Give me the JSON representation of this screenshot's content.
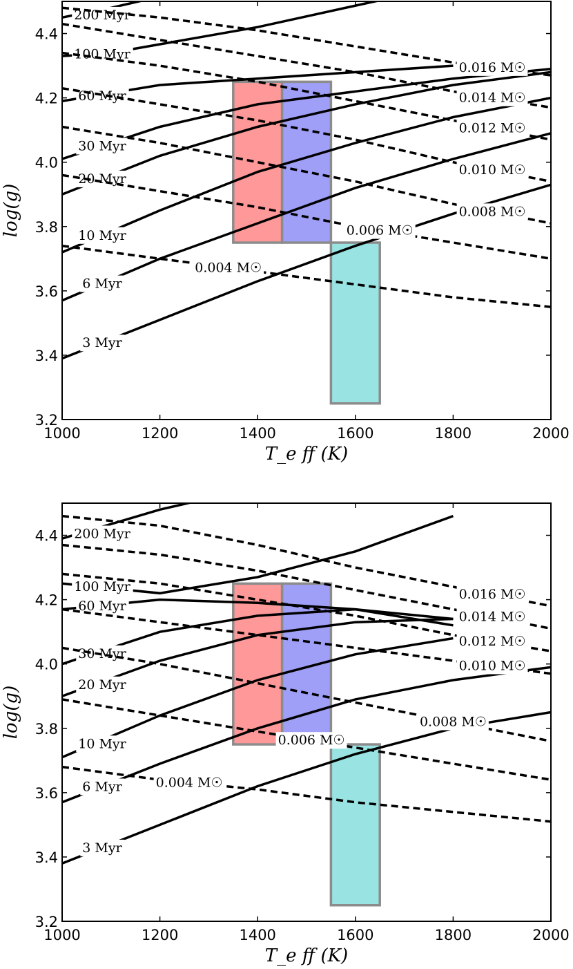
{
  "chart_data": [
    {
      "type": "line",
      "panel": "top",
      "xlabel": "T_e ff (K)",
      "ylabel": "log(g)",
      "xlim": [
        1000,
        2000
      ],
      "ylim": [
        3.2,
        4.5
      ],
      "xticks": [
        "1000",
        "1200",
        "1400",
        "1600",
        "1800",
        "2000"
      ],
      "yticks": [
        "3.2",
        "3.4",
        "3.6",
        "3.8",
        "4.0",
        "4.2",
        "4.4"
      ],
      "regions": [
        {
          "name": "red",
          "x": [
            1350,
            1450
          ],
          "y": [
            3.75,
            4.25
          ],
          "color": "#ff9999"
        },
        {
          "name": "blue",
          "x": [
            1450,
            1550
          ],
          "y": [
            3.75,
            4.25
          ],
          "color": "#9f9ff7"
        },
        {
          "name": "cyan",
          "x": [
            1550,
            1650
          ],
          "y": [
            3.25,
            3.75
          ],
          "color": "#99e3e3"
        }
      ],
      "isochrones": [
        {
          "label": "3 Myr",
          "points": [
            [
              1000,
              3.39
            ],
            [
              1200,
              3.51
            ],
            [
              1400,
              3.63
            ],
            [
              1600,
              3.74
            ],
            [
              1800,
              3.84
            ],
            [
              2000,
              3.93
            ]
          ]
        },
        {
          "label": "6 Myr",
          "points": [
            [
              1000,
              3.57
            ],
            [
              1200,
              3.7
            ],
            [
              1400,
              3.81
            ],
            [
              1600,
              3.92
            ],
            [
              1800,
              4.01
            ],
            [
              2000,
              4.09
            ]
          ]
        },
        {
          "label": "10 Myr",
          "points": [
            [
              1000,
              3.72
            ],
            [
              1200,
              3.85
            ],
            [
              1400,
              3.97
            ],
            [
              1600,
              4.06
            ],
            [
              1800,
              4.14
            ],
            [
              2000,
              4.2
            ]
          ]
        },
        {
          "label": "20 Myr",
          "points": [
            [
              1000,
              3.9
            ],
            [
              1200,
              4.02
            ],
            [
              1400,
              4.11
            ],
            [
              1600,
              4.18
            ],
            [
              1800,
              4.24
            ],
            [
              2000,
              4.28
            ]
          ]
        },
        {
          "label": "30 Myr",
          "points": [
            [
              1000,
              4.01
            ],
            [
              1200,
              4.11
            ],
            [
              1400,
              4.18
            ],
            [
              1600,
              4.22
            ],
            [
              1800,
              4.26
            ],
            [
              2000,
              4.29
            ]
          ]
        },
        {
          "label": "60 Myr",
          "points": [
            [
              1000,
              4.19
            ],
            [
              1200,
              4.24
            ],
            [
              1400,
              4.26
            ],
            [
              1600,
              4.28
            ],
            [
              1800,
              4.3
            ]
          ]
        },
        {
          "label": "100 Myr",
          "points": [
            [
              1000,
              4.33
            ],
            [
              1100,
              4.34
            ],
            [
              1400,
              4.42
            ],
            [
              1700,
              4.52
            ]
          ]
        },
        {
          "label": "200 Myr",
          "points": [
            [
              1000,
              4.45
            ],
            [
              1100,
              4.48
            ],
            [
              1300,
              4.55
            ]
          ]
        }
      ],
      "mass_tracks": [
        {
          "label": "0.004 M☉",
          "points": [
            [
              1000,
              3.74
            ],
            [
              1200,
              3.7
            ],
            [
              1400,
              3.66
            ],
            [
              1600,
              3.62
            ],
            [
              1800,
              3.58
            ],
            [
              2000,
              3.55
            ]
          ]
        },
        {
          "label": "0.006 M☉",
          "points": [
            [
              1000,
              3.96
            ],
            [
              1200,
              3.91
            ],
            [
              1400,
              3.86
            ],
            [
              1600,
              3.8
            ],
            [
              1800,
              3.75
            ],
            [
              2000,
              3.7
            ]
          ]
        },
        {
          "label": "0.008 M☉",
          "points": [
            [
              1000,
              4.11
            ],
            [
              1200,
              4.06
            ],
            [
              1400,
              4.0
            ],
            [
              1600,
              3.94
            ],
            [
              1800,
              3.87
            ],
            [
              2000,
              3.81
            ]
          ]
        },
        {
          "label": "0.010 M☉",
          "points": [
            [
              1000,
              4.23
            ],
            [
              1200,
              4.18
            ],
            [
              1400,
              4.13
            ],
            [
              1600,
              4.07
            ],
            [
              1800,
              4.0
            ],
            [
              2000,
              3.94
            ]
          ]
        },
        {
          "label": "0.012 M☉",
          "points": [
            [
              1000,
              4.34
            ],
            [
              1200,
              4.3
            ],
            [
              1400,
              4.25
            ],
            [
              1600,
              4.19
            ],
            [
              1800,
              4.13
            ],
            [
              2000,
              4.07
            ]
          ]
        },
        {
          "label": "0.014 M☉",
          "points": [
            [
              1000,
              4.43
            ],
            [
              1200,
              4.38
            ],
            [
              1400,
              4.33
            ],
            [
              1600,
              4.28
            ],
            [
              1800,
              4.22
            ],
            [
              2000,
              4.17
            ]
          ]
        },
        {
          "label": "0.016 M☉",
          "points": [
            [
              1000,
              4.48
            ],
            [
              1200,
              4.45
            ],
            [
              1400,
              4.41
            ],
            [
              1600,
              4.36
            ],
            [
              1800,
              4.31
            ],
            [
              2000,
              4.27
            ]
          ]
        }
      ]
    },
    {
      "type": "line",
      "panel": "bottom",
      "xlabel": "T_e ff (K)",
      "ylabel": "log(g)",
      "xlim": [
        1000,
        2000
      ],
      "ylim": [
        3.2,
        4.5
      ],
      "xticks": [
        "1000",
        "1200",
        "1400",
        "1600",
        "1800",
        "2000"
      ],
      "yticks": [
        "3.2",
        "3.4",
        "3.6",
        "3.8",
        "4.0",
        "4.2",
        "4.4"
      ],
      "regions": [
        {
          "name": "red",
          "x": [
            1350,
            1450
          ],
          "y": [
            3.75,
            4.25
          ],
          "color": "#ff9999"
        },
        {
          "name": "blue",
          "x": [
            1450,
            1550
          ],
          "y": [
            3.75,
            4.25
          ],
          "color": "#9f9ff7"
        },
        {
          "name": "cyan",
          "x": [
            1550,
            1650
          ],
          "y": [
            3.25,
            3.75
          ],
          "color": "#99e3e3"
        }
      ],
      "isochrones": [
        {
          "label": "3 Myr",
          "points": [
            [
              1000,
              3.38
            ],
            [
              1200,
              3.5
            ],
            [
              1400,
              3.62
            ],
            [
              1600,
              3.72
            ],
            [
              1800,
              3.8
            ],
            [
              2000,
              3.85
            ]
          ]
        },
        {
          "label": "6 Myr",
          "points": [
            [
              1000,
              3.57
            ],
            [
              1200,
              3.69
            ],
            [
              1400,
              3.8
            ],
            [
              1600,
              3.89
            ],
            [
              1800,
              3.95
            ],
            [
              2000,
              3.99
            ]
          ]
        },
        {
          "label": "10 Myr",
          "points": [
            [
              1000,
              3.71
            ],
            [
              1200,
              3.84
            ],
            [
              1400,
              3.95
            ],
            [
              1600,
              4.03
            ],
            [
              1800,
              4.08
            ]
          ]
        },
        {
          "label": "20 Myr",
          "points": [
            [
              1000,
              3.9
            ],
            [
              1200,
              4.01
            ],
            [
              1400,
              4.09
            ],
            [
              1600,
              4.13
            ],
            [
              1800,
              4.14
            ]
          ]
        },
        {
          "label": "30 Myr",
          "points": [
            [
              1000,
              4.0
            ],
            [
              1200,
              4.1
            ],
            [
              1400,
              4.15
            ],
            [
              1600,
              4.17
            ],
            [
              1800,
              4.14
            ]
          ]
        },
        {
          "label": "60 Myr",
          "points": [
            [
              1000,
              4.17
            ],
            [
              1200,
              4.2
            ],
            [
              1400,
              4.19
            ],
            [
              1600,
              4.17
            ],
            [
              1800,
              4.12
            ]
          ]
        },
        {
          "label": "100 Myr",
          "points": [
            [
              1000,
              4.25
            ],
            [
              1200,
              4.22
            ],
            [
              1400,
              4.27
            ],
            [
              1600,
              4.35
            ],
            [
              1800,
              4.46
            ]
          ]
        },
        {
          "label": "200 Myr",
          "points": [
            [
              1000,
              4.39
            ],
            [
              1200,
              4.48
            ],
            [
              1400,
              4.55
            ]
          ]
        }
      ],
      "mass_tracks": [
        {
          "label": "0.004 M☉",
          "points": [
            [
              1000,
              3.68
            ],
            [
              1200,
              3.64
            ],
            [
              1400,
              3.61
            ],
            [
              1600,
              3.57
            ],
            [
              1800,
              3.54
            ],
            [
              2000,
              3.51
            ]
          ]
        },
        {
          "label": "0.006 M☉",
          "points": [
            [
              1000,
              3.89
            ],
            [
              1200,
              3.84
            ],
            [
              1400,
              3.79
            ],
            [
              1600,
              3.74
            ],
            [
              1800,
              3.69
            ],
            [
              2000,
              3.64
            ]
          ]
        },
        {
          "label": "0.008 M☉",
          "points": [
            [
              1000,
              4.05
            ],
            [
              1200,
              4.0
            ],
            [
              1400,
              3.94
            ],
            [
              1600,
              3.88
            ],
            [
              1800,
              3.82
            ],
            [
              2000,
              3.76
            ]
          ]
        },
        {
          "label": "0.010 M☉",
          "points": [
            [
              1000,
              4.17
            ],
            [
              1200,
              4.13
            ],
            [
              1400,
              4.09
            ],
            [
              1600,
              4.05
            ],
            [
              1800,
              4.01
            ],
            [
              2000,
              3.97
            ]
          ]
        },
        {
          "label": "0.012 M☉",
          "points": [
            [
              1000,
              4.28
            ],
            [
              1200,
              4.25
            ],
            [
              1400,
              4.2
            ],
            [
              1600,
              4.15
            ],
            [
              1800,
              4.09
            ],
            [
              2000,
              4.04
            ]
          ]
        },
        {
          "label": "0.014 M☉",
          "points": [
            [
              1000,
              4.37
            ],
            [
              1200,
              4.34
            ],
            [
              1400,
              4.29
            ],
            [
              1600,
              4.23
            ],
            [
              1800,
              4.17
            ],
            [
              2000,
              4.11
            ]
          ]
        },
        {
          "label": "0.016 M☉",
          "points": [
            [
              1000,
              4.46
            ],
            [
              1200,
              4.43
            ],
            [
              1400,
              4.37
            ],
            [
              1600,
              4.3
            ],
            [
              1800,
              4.24
            ],
            [
              2000,
              4.18
            ]
          ]
        }
      ]
    }
  ]
}
